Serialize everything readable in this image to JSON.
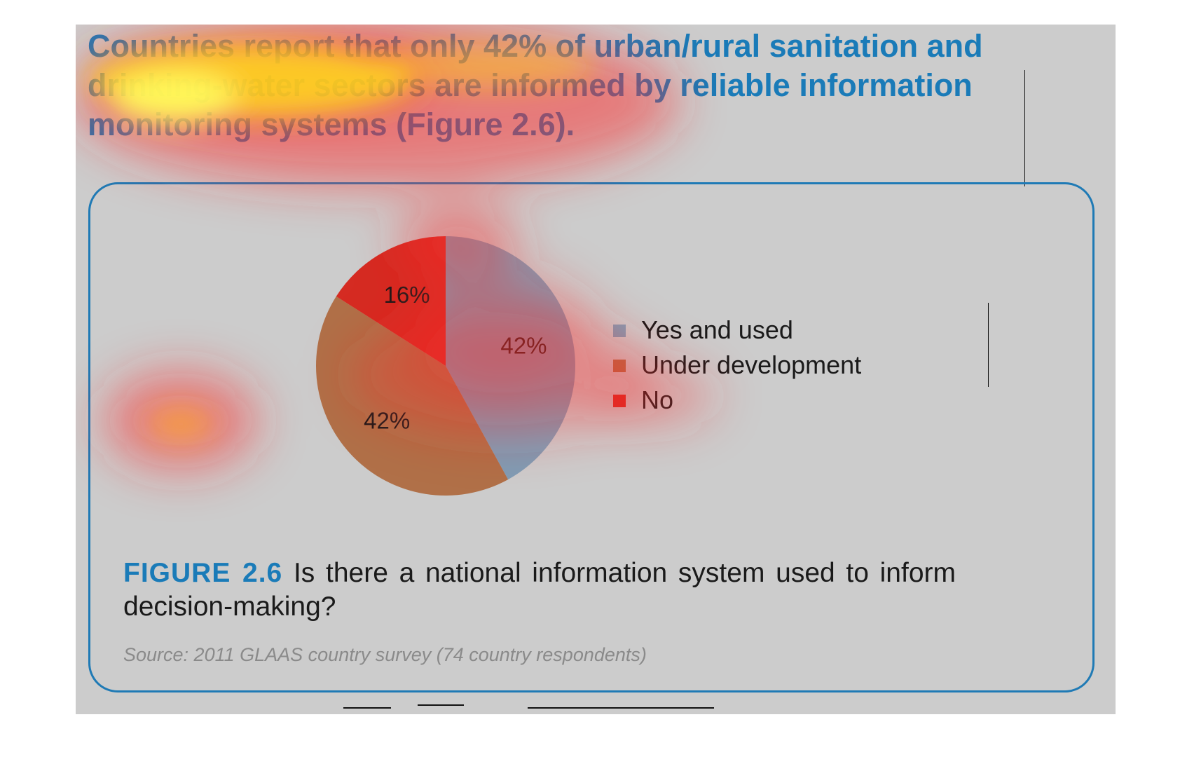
{
  "headline": "Countries report that only 42% of urban/rural sanitation and drinking-water sectors are informed by reliable information monitoring systems (Figure 2.6).",
  "colors": {
    "accent": "#1a7bb8",
    "panel": "#cccccc",
    "yes_and_used": "#7f9db5",
    "under_development": "#b07048",
    "no": "#d52b22"
  },
  "chart_data": {
    "type": "pie",
    "categories": [
      "Yes and used",
      "Under development",
      "No"
    ],
    "values": [
      42,
      42,
      16
    ],
    "data_labels": [
      "42%",
      "42%",
      "16%"
    ],
    "colors": [
      "#7f9db5",
      "#b07048",
      "#d52b22"
    ],
    "start_angle_deg": 0,
    "direction": "clockwise",
    "legend": "right"
  },
  "caption": {
    "label": "FIGURE 2.6",
    "text": " Is there a national information system used to inform decision-making?"
  },
  "source": "Source: 2011 GLAAS country survey (74 country respondents)"
}
